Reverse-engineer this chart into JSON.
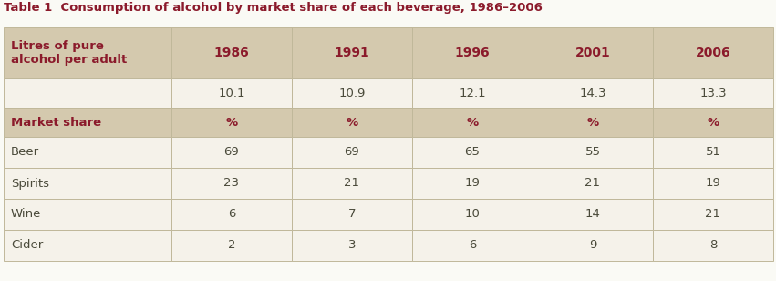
{
  "title": "Table 1  Consumption of alcohol by market share of each beverage, 1986–2006",
  "title_color": "#8B1A2B",
  "title_fontsize": 9.5,
  "bg_color": "#FAFAF5",
  "header_bg": "#D4C9AE",
  "white_bg": "#F5F2EA",
  "border_color": "#C0B89A",
  "col_label_color": "#8B1A2B",
  "data_color": "#4A4A3A",
  "header_years": [
    "1986",
    "1991",
    "1996",
    "2001",
    "2006"
  ],
  "litres_row_label": "Litres of pure\nalcohol per adult",
  "litres_values": [
    "10.1",
    "10.9",
    "12.1",
    "14.3",
    "13.3"
  ],
  "market_share_label": "Market share",
  "pct_symbol": "%",
  "beverages": [
    "Beer",
    "Spirits",
    "Wine",
    "Cider"
  ],
  "bev_data": [
    [
      "69",
      "69",
      "65",
      "55",
      "51"
    ],
    [
      "23",
      "21",
      "19",
      "21",
      "19"
    ],
    [
      "6",
      "7",
      "10",
      "14",
      "21"
    ],
    [
      "2",
      "3",
      "6",
      "9",
      "8"
    ]
  ]
}
